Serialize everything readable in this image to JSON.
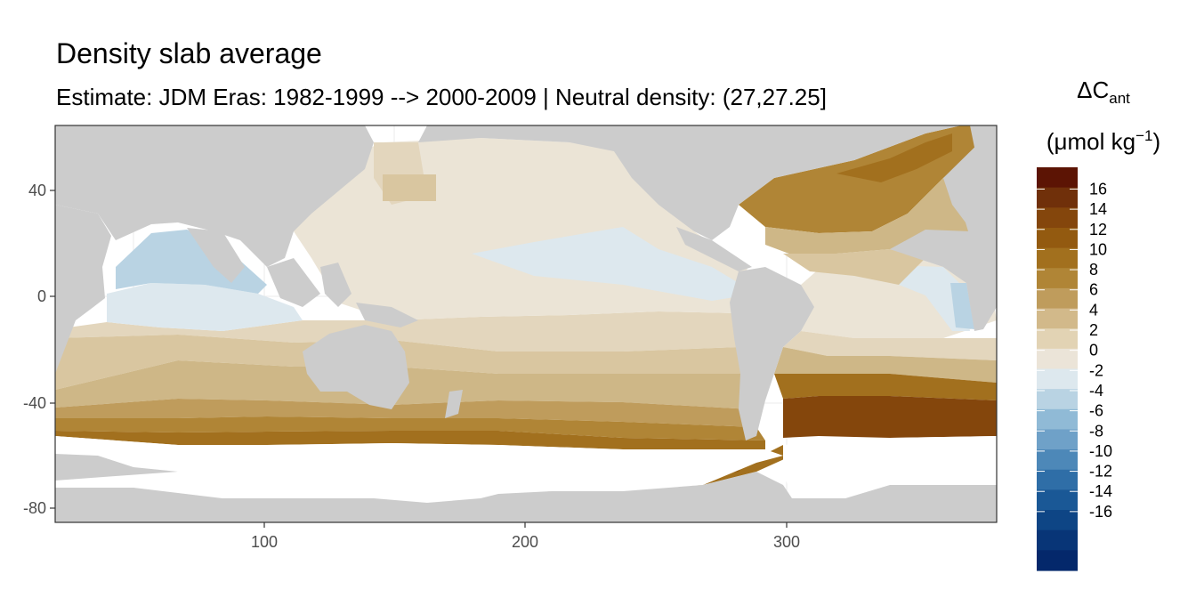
{
  "title": "Density slab average",
  "subtitle": "Estimate: JDM Eras: 1982-1999 --> 2000-2009 | Neutral density: (27,27.25]",
  "legend": {
    "title_symbol": "ΔC",
    "title_subscript": "ant",
    "unit_prefix": "(μmol kg",
    "unit_superscript": "−1",
    "unit_suffix": ")",
    "breaks": [
      16,
      14,
      12,
      10,
      8,
      6,
      4,
      2,
      0,
      -2,
      -4,
      -6,
      -8,
      -10,
      -12,
      -14,
      -16
    ],
    "colors": [
      "#5c1404",
      "#70300a",
      "#84460c",
      "#935a10",
      "#a2701e",
      "#b08536",
      "#bf9c5c",
      "#d2b98a",
      "#e2d3b4",
      "#ebe4d8",
      "#dde8ee",
      "#b9d3e3",
      "#90bad6",
      "#6fa1c8",
      "#4d88b8",
      "#2f6ea7",
      "#1a5896",
      "#0e4585",
      "#083577",
      "#04286b"
    ]
  },
  "chart_data": {
    "type": "heatmap",
    "title": "Density slab average",
    "subtitle": "Estimate: JDM Eras: 1982-1999 --> 2000-2009 | Neutral density: (27,27.25]",
    "x_ticks": [
      100,
      200,
      300
    ],
    "y_ticks": [
      40,
      0,
      -40,
      -80
    ],
    "xlim": [
      20,
      380
    ],
    "ylim": [
      -85,
      65
    ],
    "colors": {
      "land": "#cccccc",
      "no_data": "#ffffff",
      "gridline": "#ebebeb"
    }
  }
}
